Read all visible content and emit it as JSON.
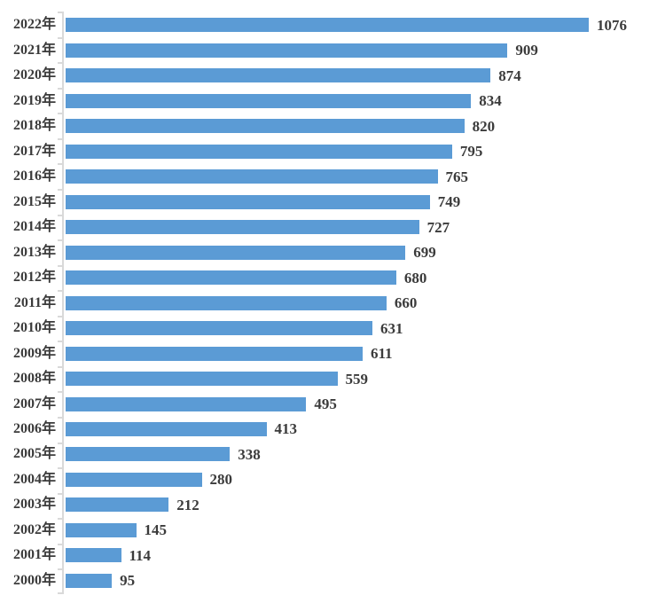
{
  "chart_data": {
    "type": "bar",
    "orientation": "horizontal",
    "title": "",
    "xlabel": "",
    "ylabel": "",
    "categories": [
      "2022年",
      "2021年",
      "2020年",
      "2019年",
      "2018年",
      "2017年",
      "2016年",
      "2015年",
      "2014年",
      "2013年",
      "2012年",
      "2011年",
      "2010年",
      "2009年",
      "2008年",
      "2007年",
      "2006年",
      "2005年",
      "2004年",
      "2003年",
      "2002年",
      "2001年",
      "2000年"
    ],
    "values": [
      1076,
      909,
      874,
      834,
      820,
      795,
      765,
      749,
      727,
      699,
      680,
      660,
      631,
      611,
      559,
      495,
      413,
      338,
      280,
      212,
      145,
      114,
      95
    ],
    "value_labels_shown": true,
    "xlim": [
      0,
      1076
    ],
    "grid": false,
    "legend": false,
    "colors": {
      "bar": "#5B9BD5",
      "text": "#3B3B3B",
      "axis": "#D9D9D9"
    }
  }
}
